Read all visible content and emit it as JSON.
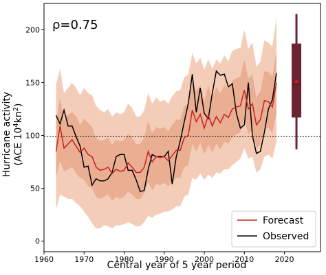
{
  "chart_data": {
    "type": "line",
    "annotation": "ρ=0.75",
    "xlabel": "Central year of 5 year period",
    "ylabel_line1": "Hurricane activity",
    "ylabel_line2_main": "(ACE 10",
    "ylabel_line2_sup1": "4",
    "ylabel_line2_mid": "kn",
    "ylabel_line2_sup2": "2",
    "ylabel_line2_end": ")",
    "xlim": [
      1960,
      2029
    ],
    "ylim": [
      -10,
      225
    ],
    "xticks": [
      1960,
      1970,
      1980,
      1990,
      2000,
      2010,
      2020
    ],
    "yticks": [
      0,
      50,
      100,
      150,
      200
    ],
    "reference_line": 99,
    "x": [
      1963,
      1964,
      1965,
      1966,
      1967,
      1968,
      1969,
      1970,
      1971,
      1972,
      1973,
      1974,
      1975,
      1976,
      1977,
      1978,
      1979,
      1980,
      1981,
      1982,
      1983,
      1984,
      1985,
      1986,
      1987,
      1988,
      1989,
      1990,
      1991,
      1992,
      1993,
      1994,
      1995,
      1996,
      1997,
      1998,
      1999,
      2000,
      2001,
      2002,
      2003,
      2004,
      2005,
      2006,
      2007,
      2008,
      2009,
      2010,
      2011,
      2012,
      2013,
      2014,
      2015,
      2016,
      2017,
      2018
    ],
    "series": [
      {
        "name": "Forecast",
        "color": "#cc1f1f",
        "values": [
          85,
          109,
          88,
          92,
          96,
          90,
          84,
          88,
          82,
          80,
          70,
          67,
          68,
          70,
          64,
          68,
          66,
          67,
          74,
          70,
          65,
          65,
          70,
          85,
          75,
          80,
          79,
          80,
          76,
          81,
          86,
          86,
          98,
          100,
          124,
          113,
          120,
          107,
          119,
          109,
          118,
          112,
          120,
          117,
          125,
          127,
          128,
          143,
          125,
          130,
          110,
          115,
          133,
          132,
          127,
          150
        ]
      },
      {
        "name": "Observed",
        "color": "#000000",
        "values": [
          119,
          111,
          124,
          109,
          109,
          99,
          90,
          70,
          71,
          53,
          59,
          57,
          57,
          59,
          65,
          80,
          82,
          82,
          67,
          67,
          58,
          47,
          48,
          68,
          82,
          80,
          80,
          80,
          85,
          54,
          80,
          95,
          113,
          130,
          158,
          122,
          145,
          121,
          116,
          140,
          161,
          157,
          158,
          146,
          149,
          121,
          107,
          110,
          150,
          100,
          83,
          85,
          103,
          125,
          134,
          159
        ]
      }
    ],
    "band_outer": {
      "low": [
        30,
        44,
        42,
        40,
        40,
        36,
        33,
        28,
        23,
        17,
        12,
        12,
        15,
        14,
        12,
        15,
        15,
        16,
        18,
        16,
        14,
        14,
        18,
        24,
        22,
        25,
        26,
        28,
        28,
        30,
        33,
        33,
        42,
        44,
        60,
        58,
        64,
        58,
        63,
        60,
        65,
        64,
        68,
        68,
        72,
        75,
        78,
        88,
        78,
        80,
        65,
        68,
        80,
        82,
        78,
        94
      ],
      "high": [
        148,
        163,
        140,
        145,
        150,
        145,
        138,
        145,
        140,
        138,
        128,
        124,
        122,
        125,
        118,
        122,
        120,
        122,
        130,
        126,
        118,
        118,
        124,
        140,
        130,
        136,
        132,
        134,
        130,
        137,
        142,
        143,
        155,
        158,
        178,
        168,
        174,
        162,
        172,
        163,
        172,
        168,
        176,
        170,
        180,
        182,
        183,
        200,
        182,
        188,
        165,
        170,
        190,
        188,
        184,
        212
      ]
    },
    "band_inner": {
      "low": [
        60,
        76,
        66,
        68,
        70,
        64,
        60,
        58,
        52,
        50,
        42,
        40,
        42,
        44,
        38,
        42,
        40,
        42,
        47,
        44,
        40,
        40,
        45,
        56,
        48,
        54,
        53,
        55,
        52,
        56,
        60,
        60,
        70,
        72,
        92,
        85,
        93,
        82,
        91,
        84,
        92,
        87,
        94,
        92,
        98,
        101,
        103,
        116,
        101,
        105,
        88,
        92,
        106,
        107,
        102,
        122
      ],
      "high": [
        112,
        136,
        114,
        120,
        122,
        118,
        110,
        116,
        112,
        108,
        98,
        95,
        96,
        98,
        91,
        96,
        94,
        96,
        102,
        98,
        92,
        92,
        98,
        114,
        102,
        108,
        106,
        108,
        104,
        110,
        115,
        115,
        128,
        130,
        152,
        142,
        148,
        133,
        147,
        136,
        146,
        140,
        148,
        144,
        152,
        154,
        156,
        172,
        154,
        158,
        136,
        142,
        161,
        160,
        156,
        180
      ]
    },
    "boxplot": {
      "x": 2023,
      "min": 87,
      "q1": 117,
      "median": 148,
      "mean": 151,
      "q3": 187,
      "max": 215,
      "color": "#6b2333",
      "mean_color": "#cc1f1f"
    },
    "legend": {
      "position": "bottom-right",
      "entries": [
        "Forecast",
        "Observed"
      ]
    },
    "band_outer_color": "#f4cdb9",
    "band_inner_color": "#eaae93"
  }
}
